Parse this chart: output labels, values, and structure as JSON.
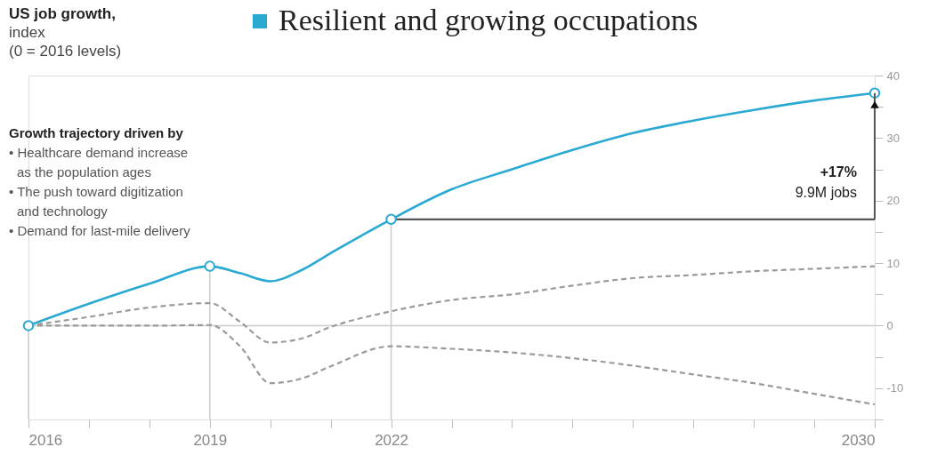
{
  "chart_data": {
    "type": "line",
    "title": "US job growth,",
    "subtitle": "index\n(0 = 2016 levels)",
    "annotations": [
      "Growth trajectory driven by",
      "• Healthcare demand increase\n  as the population ages",
      "• The push toward digitization\n  and technology",
      "• Demand for last-mile delivery",
      "+17%",
      "9.9M jobs"
    ],
    "series": [
      {
        "name": "Resilient and growing occupations",
        "color": "#2aa9d2",
        "x": [
          2016,
          2017,
          2018,
          2019,
          2019.5,
          2020,
          2020.5,
          2021,
          2022,
          2023,
          2024,
          2025,
          2026,
          2027,
          2028,
          2029,
          2030
        ],
        "values": [
          0,
          3.5,
          6.7,
          9.5,
          8.4,
          7.1,
          8.8,
          11.6,
          17,
          21.8,
          25,
          28.1,
          30.8,
          32.8,
          34.5,
          36,
          37.2
        ]
      },
      {
        "color": "#9a9a9a",
        "line_style": "dashed",
        "x": [
          2016,
          2017,
          2018,
          2019,
          2019.5,
          2020,
          2020.5,
          2021,
          2022,
          2023,
          2024,
          2025,
          2026,
          2027,
          2028,
          2029,
          2030
        ],
        "values": [
          0,
          1.4,
          2.9,
          3.6,
          0.6,
          -2.7,
          -2.1,
          -0.2,
          2.3,
          4.1,
          5.0,
          6.4,
          7.6,
          8.1,
          8.7,
          9.1,
          9.5
        ]
      },
      {
        "color": "#9a9a9a",
        "line_style": "dashed",
        "x": [
          2016,
          2017,
          2018,
          2019,
          2019.5,
          2020,
          2020.5,
          2021,
          2022,
          2023,
          2024,
          2025,
          2026,
          2027,
          2028,
          2029,
          2030
        ],
        "values": [
          0,
          0,
          0,
          0.1,
          -3.3,
          -9.2,
          -8.5,
          -6.5,
          -3.3,
          -3.7,
          -4.3,
          -5.2,
          -6.4,
          -7.8,
          -9.2,
          -10.9,
          -12.6
        ]
      },
      {
        "color": "#555555",
        "x": [
          2022,
          2030
        ],
        "values": [
          17,
          17
        ]
      },
      {
        "type": "scatter",
        "color": "#2aa9d2",
        "marker": "circle",
        "x": [
          2016,
          2019,
          2022,
          2030
        ],
        "values": [
          0,
          9.5,
          17,
          37.2
        ]
      }
    ],
    "ref_lines": [
      {
        "axis": "x",
        "value": 2016,
        "color": "#cccccc"
      },
      {
        "axis": "x",
        "value": 2019,
        "color": "#cccccc"
      },
      {
        "axis": "x",
        "value": 2022,
        "color": "#cccccc"
      },
      {
        "axis": "y",
        "value": 0,
        "color": "#cccccc"
      }
    ],
    "xlim": [
      2016,
      2030
    ],
    "xticks": [
      2016,
      {
        "value": 2017,
        "label": null
      },
      {
        "value": 2018,
        "label": null
      },
      2019,
      {
        "value": 2020,
        "label": null
      },
      {
        "value": 2021,
        "label": null
      },
      2022,
      {
        "value": 2023,
        "label": null
      },
      {
        "value": 2024,
        "label": null
      },
      {
        "value": 2025,
        "label": null
      },
      {
        "value": 2026,
        "label": null
      },
      {
        "value": 2027,
        "label": null
      },
      {
        "value": 2028,
        "label": null
      },
      {
        "value": 2029,
        "label": null
      },
      2030
    ],
    "ylim": [
      -15,
      40
    ],
    "yticks": [
      {
        "value": -15,
        "label": null
      },
      -10,
      {
        "value": -5,
        "label": null
      },
      0,
      {
        "value": 5,
        "label": null
      },
      10,
      {
        "value": 15,
        "label": null
      },
      20,
      {
        "value": 25,
        "label": null
      },
      30,
      {
        "value": 35,
        "label": null
      },
      40
    ],
    "grid": false,
    "legend": "top"
  }
}
